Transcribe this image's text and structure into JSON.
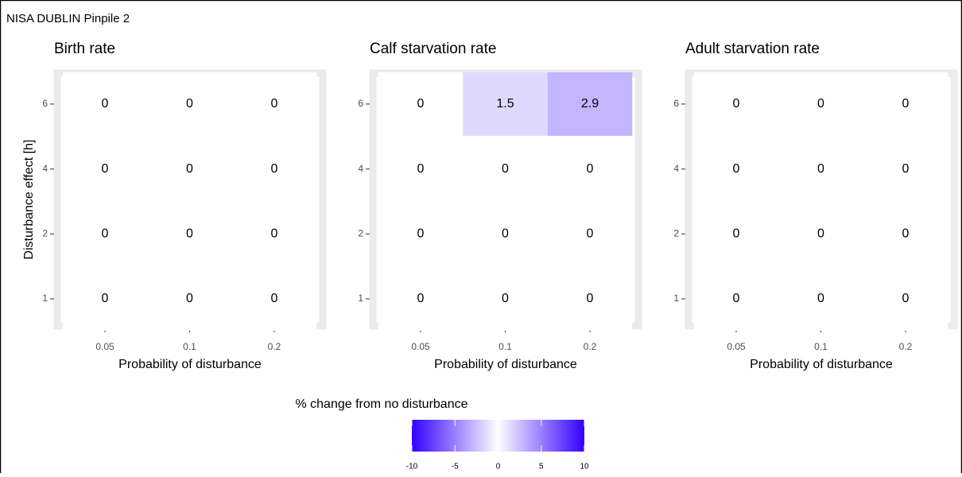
{
  "header": {
    "title": "NISA DUBLIN Pinpile 2"
  },
  "chart_data": [
    {
      "type": "heatmap",
      "title": "Birth rate",
      "x_label": "Probability of disturbance",
      "y_label": "Disturbance effect [h]",
      "categories": [
        "0.05",
        "0.1",
        "0.2"
      ],
      "y_categories": [
        "1",
        "2",
        "4",
        "6"
      ],
      "values": [
        [
          0,
          0,
          0
        ],
        [
          0,
          0,
          0
        ],
        [
          0,
          0,
          0
        ],
        [
          0,
          0,
          0
        ]
      ]
    },
    {
      "type": "heatmap",
      "title": "Calf starvation rate",
      "x_label": "Probability of disturbance",
      "categories": [
        "0.05",
        "0.1",
        "0.2"
      ],
      "y_categories": [
        "1",
        "2",
        "4",
        "6"
      ],
      "values": [
        [
          0,
          0,
          0
        ],
        [
          0,
          0,
          0
        ],
        [
          0,
          0,
          0
        ],
        [
          0,
          1.5,
          2.9
        ]
      ]
    },
    {
      "type": "heatmap",
      "title": "Adult starvation rate",
      "x_label": "Probability of disturbance",
      "categories": [
        "0.05",
        "0.1",
        "0.2"
      ],
      "y_categories": [
        "1",
        "2",
        "4",
        "6"
      ],
      "values": [
        [
          0,
          0,
          0
        ],
        [
          0,
          0,
          0
        ],
        [
          0,
          0,
          0
        ],
        [
          0,
          0,
          0
        ]
      ]
    }
  ],
  "legend": {
    "title": "% change from no disturbance",
    "lim": [
      -10,
      10
    ],
    "ticks": [
      -10,
      -5,
      0,
      5,
      10
    ],
    "colors": [
      "#3300ff",
      "#ffffff",
      "#3300ff"
    ]
  }
}
